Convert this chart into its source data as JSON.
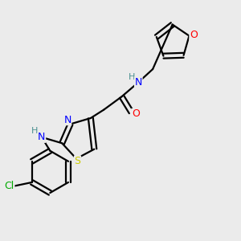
{
  "bg_color": "#ebebeb",
  "bond_color": "#000000",
  "atom_colors": {
    "N": "#0000ff",
    "O": "#ff0000",
    "S": "#cccc00",
    "Cl": "#00aa00",
    "C": "#000000",
    "H": "#4a9090"
  }
}
